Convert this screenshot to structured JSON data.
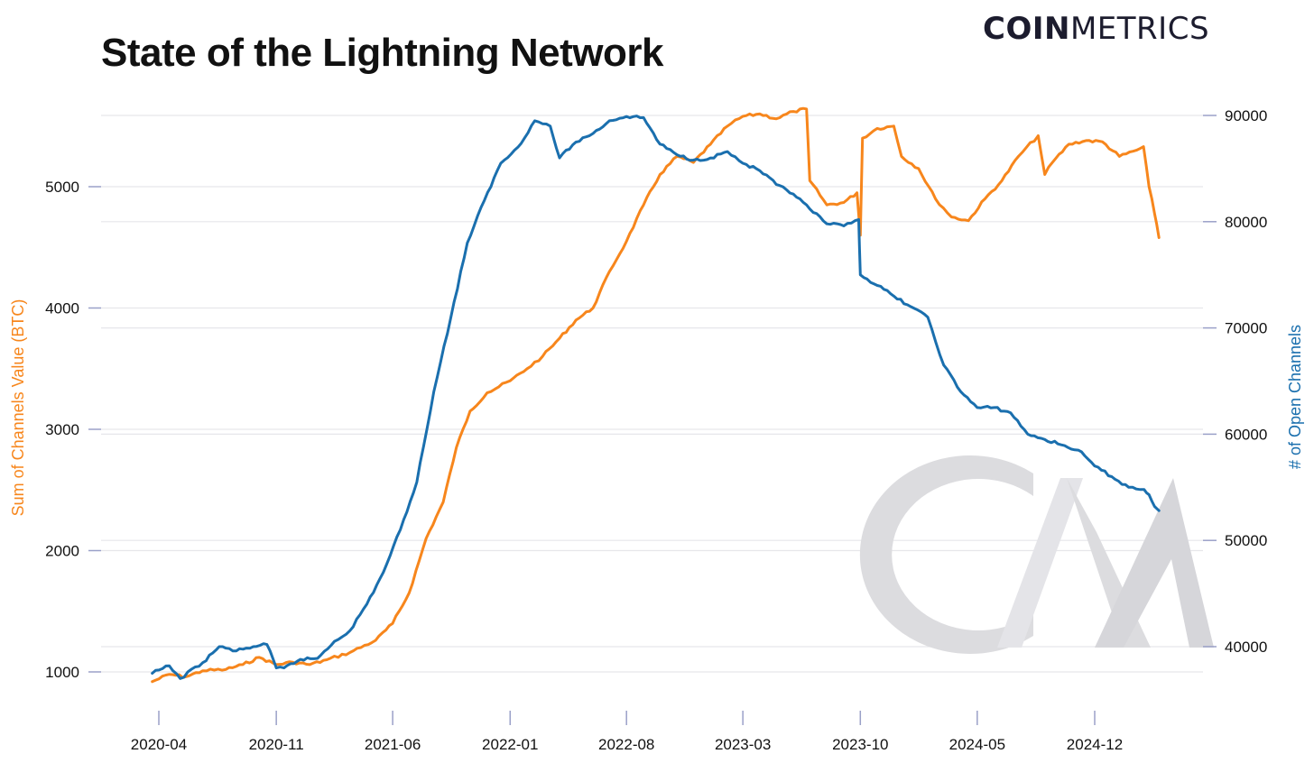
{
  "header": {
    "title": "State of the Lightning Network",
    "brand_bold": "COIN",
    "brand_light": "METRICS"
  },
  "colors": {
    "left_series": "#f7861c",
    "right_series": "#1a6fae",
    "grid": "#e6e6ea",
    "tick_mark": "#9aa0c8",
    "watermark": "#dcdcdf"
  },
  "chart_data": {
    "type": "line",
    "xlabel": "",
    "x_ticks": [
      "2020-04",
      "2020-11",
      "2021-06",
      "2022-01",
      "2022-08",
      "2023-03",
      "2023-10",
      "2024-05",
      "2024-12"
    ],
    "y_left": {
      "label": "Sum of Channels Value (BTC)",
      "ticks": [
        1000,
        2000,
        3000,
        4000,
        5000
      ],
      "range": [
        800,
        5700
      ]
    },
    "y_right": {
      "label": "# of Open Channels",
      "ticks": [
        40000,
        50000,
        60000,
        70000,
        80000,
        90000
      ],
      "range": [
        37500,
        91000
      ]
    },
    "grid": true,
    "legend": "none",
    "series": [
      {
        "name": "Sum of Channels Value (BTC)",
        "axis": "left",
        "points": [
          [
            "2020-03-20",
            920
          ],
          [
            "2020-04-20",
            980
          ],
          [
            "2020-05-20",
            960
          ],
          [
            "2020-06-20",
            1010
          ],
          [
            "2020-08-01",
            1020
          ],
          [
            "2020-09-01",
            1060
          ],
          [
            "2020-10-01",
            1120
          ],
          [
            "2020-11-01",
            1060
          ],
          [
            "2020-12-01",
            1080
          ],
          [
            "2021-01-01",
            1060
          ],
          [
            "2021-02-01",
            1100
          ],
          [
            "2021-03-15",
            1160
          ],
          [
            "2021-05-01",
            1260
          ],
          [
            "2021-06-01",
            1400
          ],
          [
            "2021-07-01",
            1650
          ],
          [
            "2021-08-01",
            2100
          ],
          [
            "2021-09-01",
            2400
          ],
          [
            "2021-09-25",
            2850
          ],
          [
            "2021-10-20",
            3150
          ],
          [
            "2021-11-20",
            3300
          ],
          [
            "2022-01-01",
            3400
          ],
          [
            "2022-02-01",
            3500
          ],
          [
            "2022-03-01",
            3600
          ],
          [
            "2022-04-01",
            3750
          ],
          [
            "2022-05-01",
            3900
          ],
          [
            "2022-06-01",
            4000
          ],
          [
            "2022-07-01",
            4300
          ],
          [
            "2022-08-01",
            4550
          ],
          [
            "2022-09-01",
            4850
          ],
          [
            "2022-10-01",
            5100
          ],
          [
            "2022-11-01",
            5250
          ],
          [
            "2022-12-01",
            5200
          ],
          [
            "2023-01-01",
            5350
          ],
          [
            "2023-02-01",
            5500
          ],
          [
            "2023-03-01",
            5580
          ],
          [
            "2023-04-01",
            5600
          ],
          [
            "2023-05-01",
            5560
          ],
          [
            "2023-06-01",
            5620
          ],
          [
            "2023-06-25",
            5640
          ],
          [
            "2023-07-01",
            5050
          ],
          [
            "2023-08-01",
            4850
          ],
          [
            "2023-09-01",
            4870
          ],
          [
            "2023-09-25",
            4950
          ],
          [
            "2023-10-01",
            4600
          ],
          [
            "2023-10-05",
            5400
          ],
          [
            "2023-11-01",
            5480
          ],
          [
            "2023-12-01",
            5500
          ],
          [
            "2023-12-15",
            5250
          ],
          [
            "2024-01-15",
            5150
          ],
          [
            "2024-02-15",
            4900
          ],
          [
            "2024-03-15",
            4750
          ],
          [
            "2024-04-15",
            4720
          ],
          [
            "2024-05-15",
            4900
          ],
          [
            "2024-06-15",
            5050
          ],
          [
            "2024-07-15",
            5250
          ],
          [
            "2024-08-20",
            5420
          ],
          [
            "2024-09-01",
            5100
          ],
          [
            "2024-09-15",
            5200
          ],
          [
            "2024-10-15",
            5350
          ],
          [
            "2024-11-15",
            5380
          ],
          [
            "2024-12-15",
            5370
          ],
          [
            "2025-01-15",
            5250
          ],
          [
            "2025-02-15",
            5300
          ],
          [
            "2025-02-28",
            5330
          ],
          [
            "2025-03-10",
            5000
          ],
          [
            "2025-03-20",
            4780
          ],
          [
            "2025-03-28",
            4580
          ]
        ]
      },
      {
        "name": "# of Open Channels",
        "axis": "right",
        "points": [
          [
            "2020-03-20",
            37500
          ],
          [
            "2020-04-20",
            38200
          ],
          [
            "2020-05-10",
            37000
          ],
          [
            "2020-06-20",
            38500
          ],
          [
            "2020-07-20",
            40000
          ],
          [
            "2020-08-20",
            39600
          ],
          [
            "2020-09-20",
            40000
          ],
          [
            "2020-10-15",
            40200
          ],
          [
            "2020-11-01",
            38000
          ],
          [
            "2020-11-15",
            38000
          ],
          [
            "2020-12-15",
            38800
          ],
          [
            "2021-01-15",
            38900
          ],
          [
            "2021-02-15",
            40500
          ],
          [
            "2021-03-15",
            41500
          ],
          [
            "2021-04-15",
            44000
          ],
          [
            "2021-05-15",
            47000
          ],
          [
            "2021-06-15",
            51000
          ],
          [
            "2021-07-15",
            55500
          ],
          [
            "2021-08-15",
            64000
          ],
          [
            "2021-09-15",
            71000
          ],
          [
            "2021-10-15",
            78000
          ],
          [
            "2021-11-15",
            82000
          ],
          [
            "2021-12-15",
            85500
          ],
          [
            "2022-01-15",
            87000
          ],
          [
            "2022-02-15",
            89500
          ],
          [
            "2022-03-15",
            89000
          ],
          [
            "2022-04-01",
            86000
          ],
          [
            "2022-05-01",
            87500
          ],
          [
            "2022-06-01",
            88300
          ],
          [
            "2022-07-01",
            89500
          ],
          [
            "2022-08-01",
            89900
          ],
          [
            "2022-09-01",
            89800
          ],
          [
            "2022-10-01",
            87300
          ],
          [
            "2022-11-01",
            86300
          ],
          [
            "2022-12-01",
            85800
          ],
          [
            "2023-01-01",
            86000
          ],
          [
            "2023-02-01",
            86600
          ],
          [
            "2023-03-01",
            85500
          ],
          [
            "2023-04-01",
            84800
          ],
          [
            "2023-05-01",
            83500
          ],
          [
            "2023-06-01",
            82600
          ],
          [
            "2023-07-01",
            81200
          ],
          [
            "2023-08-01",
            79800
          ],
          [
            "2023-09-01",
            79600
          ],
          [
            "2023-09-28",
            80200
          ],
          [
            "2023-10-01",
            75000
          ],
          [
            "2023-11-01",
            74000
          ],
          [
            "2023-12-01",
            73000
          ],
          [
            "2024-01-01",
            72000
          ],
          [
            "2024-02-01",
            71000
          ],
          [
            "2024-03-01",
            66500
          ],
          [
            "2024-04-01",
            64000
          ],
          [
            "2024-05-01",
            62500
          ],
          [
            "2024-06-01",
            62500
          ],
          [
            "2024-07-01",
            62000
          ],
          [
            "2024-08-01",
            60000
          ],
          [
            "2024-09-01",
            59500
          ],
          [
            "2024-10-01",
            59000
          ],
          [
            "2024-11-01",
            58500
          ],
          [
            "2024-12-01",
            57000
          ],
          [
            "2025-01-01",
            56000
          ],
          [
            "2025-02-01",
            55000
          ],
          [
            "2025-03-01",
            54800
          ],
          [
            "2025-03-10",
            54300
          ],
          [
            "2025-03-20",
            53200
          ],
          [
            "2025-03-28",
            52800
          ]
        ]
      }
    ]
  }
}
